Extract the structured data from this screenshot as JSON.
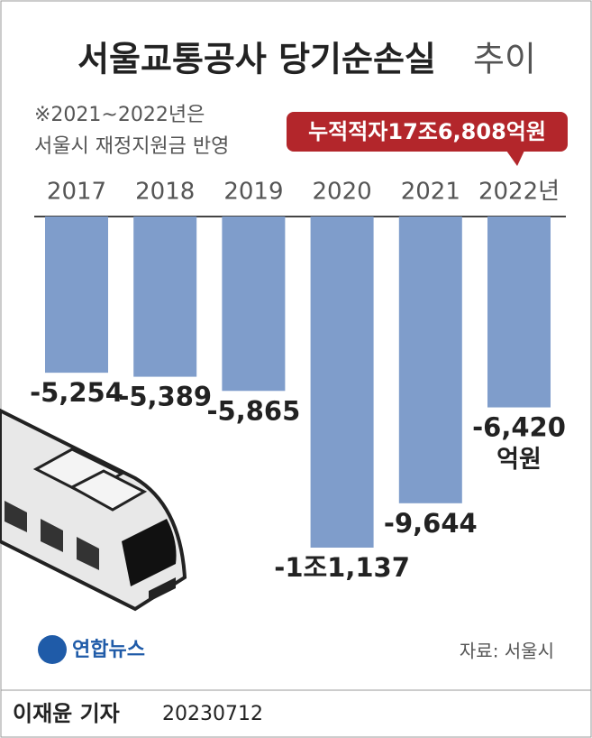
{
  "chart_data": {
    "type": "bar",
    "title": "서울교통공사 당기순손실",
    "title_suffix": "추이",
    "note": [
      "※2021~2022년은",
      "서울시 재정지원금 반영"
    ],
    "annotation": "누적적자17조6,808억원",
    "categories": [
      "2017",
      "2018",
      "2019",
      "2020",
      "2021",
      "2022년"
    ],
    "values": [
      -5254,
      -5389,
      -5865,
      -11137,
      -9644,
      -6420
    ],
    "value_labels": [
      "-5,254",
      "-5,389",
      "-5,865",
      "-1조1,137",
      "-9,644",
      "-6,420"
    ],
    "unit": "억원",
    "color": "#7f9dcb",
    "source": "자료: 서울시"
  },
  "logo": "연합뉴스",
  "footer": {
    "reporter": "이재윤 기자",
    "date": "20230712"
  }
}
